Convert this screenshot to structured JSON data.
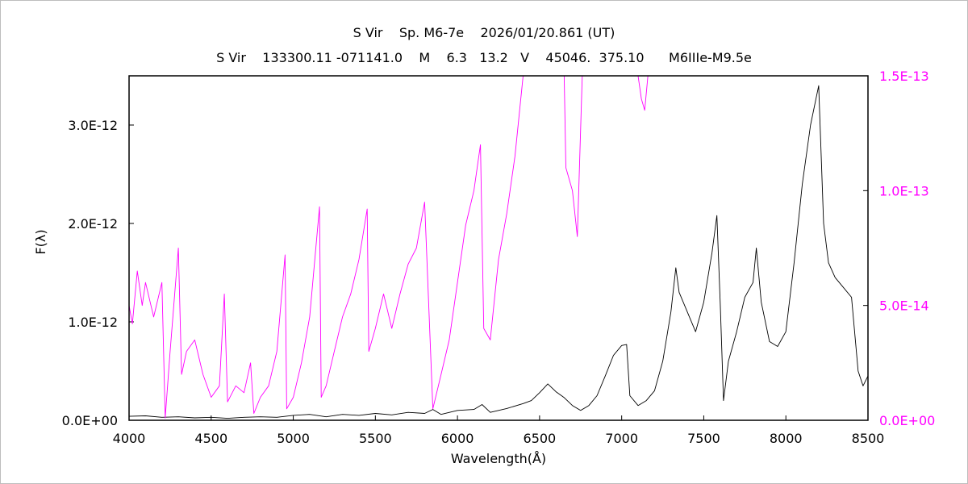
{
  "chart_data": {
    "type": "line",
    "title": "S Vir    Sp. M6-7e    2026/01/20.861 (UT)",
    "subtitle": "S Vir    133300.11 -071141.0    M    6.3   13.2   V    45046.  375.10      M6IIIe-M9.5e",
    "xlabel": "Wavelength(Å)",
    "ylabel": "F(λ)",
    "xlim": [
      4000,
      8500
    ],
    "ylim_left": [
      0,
      3.5e-12
    ],
    "ylim_right": [
      0,
      1.5e-13
    ],
    "x_ticks": [
      "4000",
      "4500",
      "5000",
      "5500",
      "6000",
      "6500",
      "7000",
      "7500",
      "8000",
      "8500"
    ],
    "y_ticks_left": [
      "0.0E+00",
      "1.0E-12",
      "2.0E-12",
      "3.0E-12"
    ],
    "y_ticks_right": [
      "0.0E+00",
      "5.0E-14",
      "1.0E-13",
      "1.5E-13"
    ],
    "colors": {
      "left_series": "#000000",
      "right_series": "#ff00ff",
      "right_axis": "#ff00ff"
    },
    "series": [
      {
        "axis": "left",
        "color": "#000000",
        "points": [
          [
            4000,
            4e-14
          ],
          [
            4100,
            4.5e-14
          ],
          [
            4200,
            3e-14
          ],
          [
            4300,
            3.5e-14
          ],
          [
            4400,
            2.5e-14
          ],
          [
            4500,
            3e-14
          ],
          [
            4600,
            2e-14
          ],
          [
            4700,
            3e-14
          ],
          [
            4800,
            3.5e-14
          ],
          [
            4900,
            3e-14
          ],
          [
            5000,
            5e-14
          ],
          [
            5100,
            6e-14
          ],
          [
            5200,
            3.5e-14
          ],
          [
            5300,
            6e-14
          ],
          [
            5400,
            5e-14
          ],
          [
            5500,
            7e-14
          ],
          [
            5600,
            5.5e-14
          ],
          [
            5700,
            8e-14
          ],
          [
            5800,
            7e-14
          ],
          [
            5850,
            1.1e-13
          ],
          [
            5900,
            6e-14
          ],
          [
            6000,
            1e-13
          ],
          [
            6100,
            1.1e-13
          ],
          [
            6150,
            1.6e-13
          ],
          [
            6200,
            8e-14
          ],
          [
            6300,
            1.2e-13
          ],
          [
            6400,
            1.7e-13
          ],
          [
            6450,
            2e-13
          ],
          [
            6500,
            2.8e-13
          ],
          [
            6550,
            3.7e-13
          ],
          [
            6600,
            2.9e-13
          ],
          [
            6650,
            2.3e-13
          ],
          [
            6700,
            1.5e-13
          ],
          [
            6750,
            1e-13
          ],
          [
            6800,
            1.5e-13
          ],
          [
            6850,
            2.5e-13
          ],
          [
            6900,
            4.5e-13
          ],
          [
            6950,
            6.6e-13
          ],
          [
            7000,
            7.6e-13
          ],
          [
            7030,
            7.7e-13
          ],
          [
            7050,
            2.5e-13
          ],
          [
            7100,
            1.5e-13
          ],
          [
            7150,
            2e-13
          ],
          [
            7200,
            3e-13
          ],
          [
            7250,
            6e-13
          ],
          [
            7300,
            1.1e-12
          ],
          [
            7330,
            1.55e-12
          ],
          [
            7350,
            1.3e-12
          ],
          [
            7400,
            1.1e-12
          ],
          [
            7450,
            9e-13
          ],
          [
            7500,
            1.2e-12
          ],
          [
            7550,
            1.7e-12
          ],
          [
            7580,
            2.08e-12
          ],
          [
            7600,
            1.2e-12
          ],
          [
            7620,
            2e-13
          ],
          [
            7650,
            6e-13
          ],
          [
            7700,
            9e-13
          ],
          [
            7750,
            1.25e-12
          ],
          [
            7800,
            1.4e-12
          ],
          [
            7820,
            1.75e-12
          ],
          [
            7850,
            1.2e-12
          ],
          [
            7900,
            8e-13
          ],
          [
            7950,
            7.5e-13
          ],
          [
            8000,
            9e-13
          ],
          [
            8050,
            1.6e-12
          ],
          [
            8100,
            2.4e-12
          ],
          [
            8150,
            3e-12
          ],
          [
            8200,
            3.4e-12
          ],
          [
            8230,
            2e-12
          ],
          [
            8260,
            1.6e-12
          ],
          [
            8300,
            1.45e-12
          ],
          [
            8350,
            1.35e-12
          ],
          [
            8400,
            1.25e-12
          ],
          [
            8440,
            5e-13
          ],
          [
            8470,
            3.5e-13
          ],
          [
            8500,
            4.5e-13
          ]
        ]
      },
      {
        "axis": "right",
        "color": "#ff00ff",
        "points": [
          [
            4000,
            5e-14
          ],
          [
            4020,
            4.2e-14
          ],
          [
            4050,
            6.5e-14
          ],
          [
            4080,
            5e-14
          ],
          [
            4100,
            6e-14
          ],
          [
            4150,
            4.5e-14
          ],
          [
            4200,
            6e-14
          ],
          [
            4220,
            1e-15
          ],
          [
            4250,
            3e-14
          ],
          [
            4300,
            7.5e-14
          ],
          [
            4320,
            2e-14
          ],
          [
            4350,
            3e-14
          ],
          [
            4400,
            3.5e-14
          ],
          [
            4450,
            2e-14
          ],
          [
            4500,
            1e-14
          ],
          [
            4550,
            1.5e-14
          ],
          [
            4580,
            5.5e-14
          ],
          [
            4600,
            8e-15
          ],
          [
            4650,
            1.5e-14
          ],
          [
            4700,
            1.2e-14
          ],
          [
            4740,
            2.5e-14
          ],
          [
            4760,
            3e-15
          ],
          [
            4800,
            1e-14
          ],
          [
            4850,
            1.5e-14
          ],
          [
            4900,
            3e-14
          ],
          [
            4950,
            7.2e-14
          ],
          [
            4960,
            5e-15
          ],
          [
            5000,
            1e-14
          ],
          [
            5050,
            2.5e-14
          ],
          [
            5100,
            4.5e-14
          ],
          [
            5160,
            9.3e-14
          ],
          [
            5170,
            1e-14
          ],
          [
            5200,
            1.5e-14
          ],
          [
            5250,
            3e-14
          ],
          [
            5300,
            4.5e-14
          ],
          [
            5350,
            5.5e-14
          ],
          [
            5400,
            7e-14
          ],
          [
            5450,
            9.2e-14
          ],
          [
            5460,
            3e-14
          ],
          [
            5500,
            4e-14
          ],
          [
            5550,
            5.5e-14
          ],
          [
            5600,
            4e-14
          ],
          [
            5650,
            5.5e-14
          ],
          [
            5700,
            6.8e-14
          ],
          [
            5750,
            7.5e-14
          ],
          [
            5800,
            9.5e-14
          ],
          [
            5850,
            5e-15
          ],
          [
            5900,
            2e-14
          ],
          [
            5950,
            3.5e-14
          ],
          [
            6000,
            6e-14
          ],
          [
            6050,
            8.5e-14
          ],
          [
            6100,
            1e-13
          ],
          [
            6140,
            1.2e-13
          ],
          [
            6160,
            4e-14
          ],
          [
            6200,
            3.5e-14
          ],
          [
            6250,
            7e-14
          ],
          [
            6300,
            9e-14
          ],
          [
            6350,
            1.15e-13
          ],
          [
            6400,
            1.5e-13
          ],
          [
            6420,
            1.5e-13
          ],
          [
            6650,
            1.5e-13
          ],
          [
            6660,
            1.1e-13
          ],
          [
            6700,
            1e-13
          ],
          [
            6730,
            8e-14
          ],
          [
            6760,
            1.5e-13
          ],
          [
            6800,
            1.5e-13
          ],
          [
            7100,
            1.5e-13
          ],
          [
            7120,
            1.4e-13
          ],
          [
            7140,
            1.35e-13
          ],
          [
            7160,
            1.5e-13
          ]
        ]
      }
    ]
  }
}
